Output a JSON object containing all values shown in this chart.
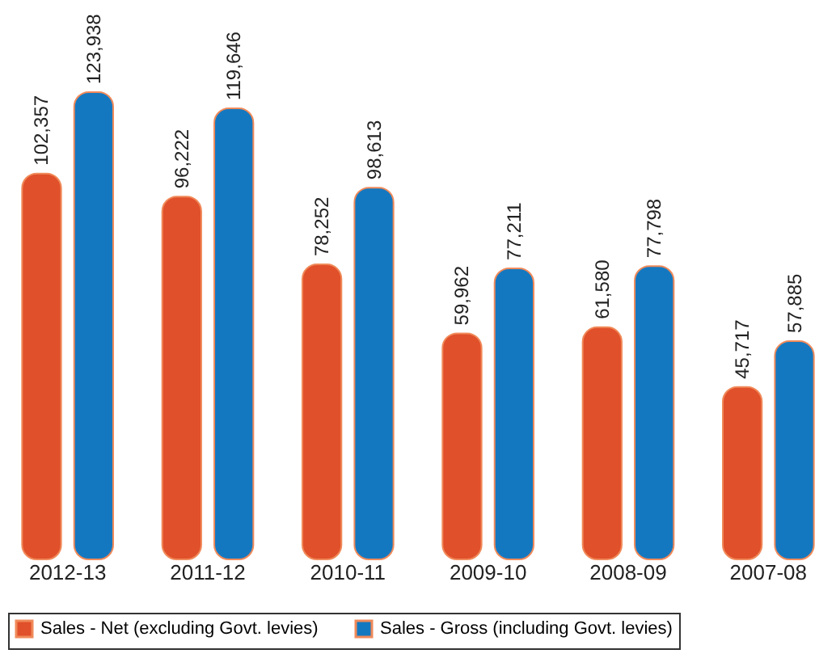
{
  "chart_data": {
    "type": "bar",
    "categories": [
      "2012-13",
      "2011-12",
      "2010-11",
      "2009-10",
      "2008-09",
      "2007-08"
    ],
    "series": [
      {
        "name": "Sales - Net (excluding Govt. levies)",
        "color": "#e0502a",
        "values": [
          102357,
          96222,
          78252,
          59962,
          61580,
          45717
        ],
        "value_labels": [
          "102,357",
          "96,222",
          "78,252",
          "59,962",
          "61,580",
          "45,717"
        ]
      },
      {
        "name": "Sales - Gross (including Govt. levies)",
        "color": "#1478c0",
        "values": [
          123938,
          119646,
          98613,
          77211,
          77798,
          57885
        ],
        "value_labels": [
          "123,938",
          "119,646",
          "98,613",
          "77,211",
          "77,798",
          "57,885"
        ]
      }
    ],
    "legend": "bottom",
    "grid": false
  }
}
